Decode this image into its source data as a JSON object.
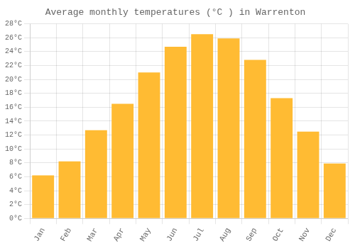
{
  "chart_data": {
    "type": "bar",
    "title": "Average monthly temperatures (°C ) in Warrenton",
    "categories": [
      "Jan",
      "Feb",
      "Mar",
      "Apr",
      "May",
      "Jun",
      "Jul",
      "Aug",
      "Sep",
      "Oct",
      "Nov",
      "Dec"
    ],
    "values": [
      6.2,
      8.2,
      12.7,
      16.5,
      21.0,
      24.7,
      26.5,
      25.9,
      22.8,
      17.3,
      12.5,
      7.9
    ],
    "color": "#FFBB33",
    "ylim": [
      0,
      28
    ],
    "yticks": [
      {
        "value": 0,
        "label": "0°C"
      },
      {
        "value": 2,
        "label": "2°C"
      },
      {
        "value": 4,
        "label": "4°C"
      },
      {
        "value": 6,
        "label": "6°C"
      },
      {
        "value": 8,
        "label": "8°C"
      },
      {
        "value": 10,
        "label": "10°C"
      },
      {
        "value": 12,
        "label": "12°C"
      },
      {
        "value": 14,
        "label": "14°C"
      },
      {
        "value": 16,
        "label": "16°C"
      },
      {
        "value": 18,
        "label": "18°C"
      },
      {
        "value": 20,
        "label": "20°C"
      },
      {
        "value": 22,
        "label": "22°C"
      },
      {
        "value": 24,
        "label": "24°C"
      },
      {
        "value": 26,
        "label": "26°C"
      },
      {
        "value": 28,
        "label": "28°C"
      }
    ],
    "grid": true
  }
}
